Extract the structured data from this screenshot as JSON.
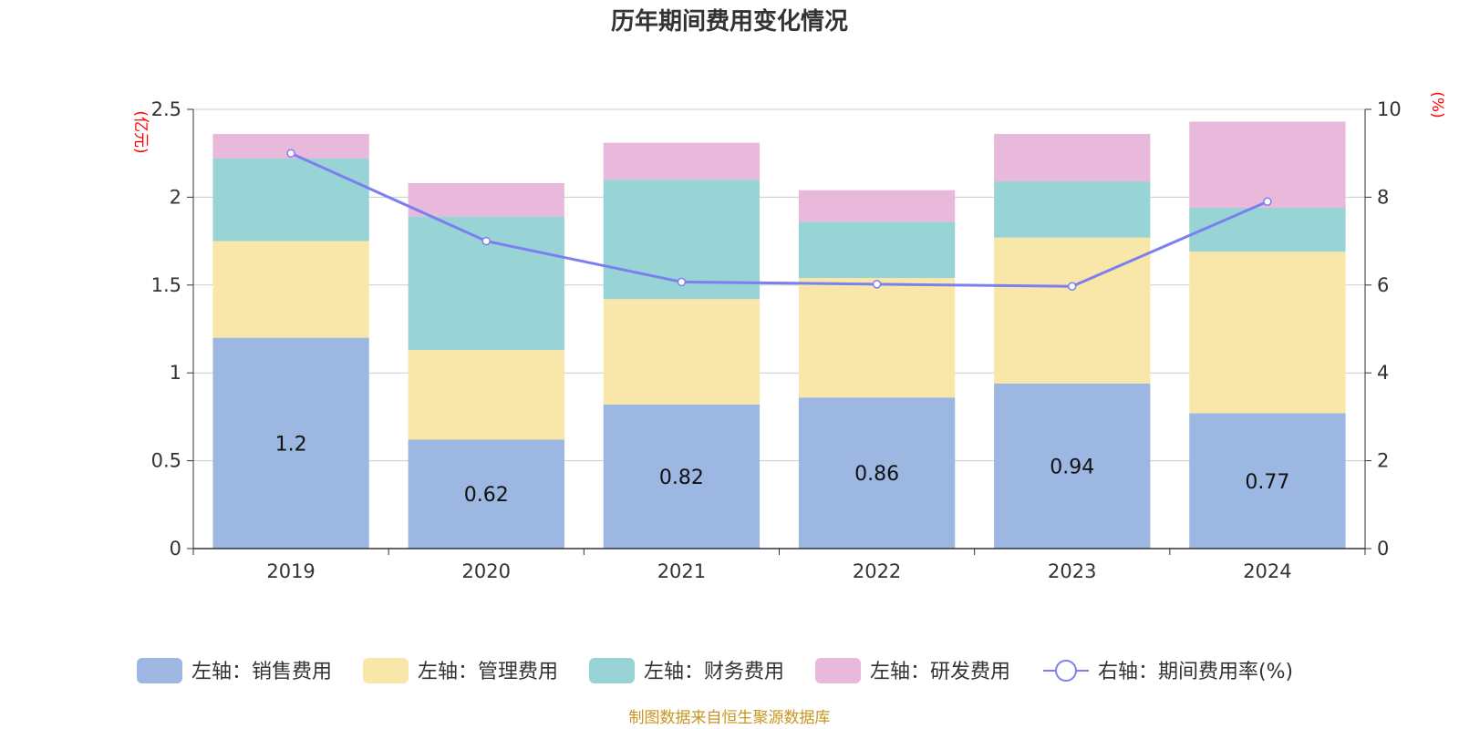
{
  "chart_data": {
    "type": "bar",
    "title": "历年期间费用变化情况",
    "categories": [
      "2019",
      "2020",
      "2021",
      "2022",
      "2023",
      "2024"
    ],
    "y_left_label": "(亿元)",
    "y_right_label": "(%)",
    "y_left_lim": [
      0,
      2.5
    ],
    "y_left_ticks": [
      "0",
      "0.5",
      "1",
      "1.5",
      "2",
      "2.5"
    ],
    "y_right_lim": [
      0,
      10
    ],
    "y_right_ticks": [
      "0",
      "2",
      "4",
      "6",
      "8",
      "10"
    ],
    "grid": true,
    "legend_position": "bottom",
    "series": [
      {
        "name": "左轴：销售费用",
        "type": "bar",
        "axis": "left",
        "color": "#9bb7e2",
        "values": [
          1.2,
          0.62,
          0.82,
          0.86,
          0.94,
          0.77
        ],
        "labels": [
          "1.2",
          "0.62",
          "0.82",
          "0.86",
          "0.94",
          "0.77"
        ]
      },
      {
        "name": "左轴：管理费用",
        "type": "bar",
        "axis": "left",
        "color": "#f8e7a8",
        "values": [
          0.55,
          0.51,
          0.6,
          0.68,
          0.83,
          0.92
        ]
      },
      {
        "name": "左轴：财务费用",
        "type": "bar",
        "axis": "left",
        "color": "#98d4d5",
        "values": [
          0.47,
          0.76,
          0.68,
          0.32,
          0.32,
          0.25
        ]
      },
      {
        "name": "左轴：研发费用",
        "type": "bar",
        "axis": "left",
        "color": "#e8b9da",
        "values": [
          0.14,
          0.19,
          0.21,
          0.18,
          0.27,
          0.49
        ]
      },
      {
        "name": "右轴：期间费用率(%)",
        "type": "line",
        "axis": "right",
        "color": "#7b7ff0",
        "values": [
          9.0,
          7.0,
          6.07,
          6.02,
          5.97,
          7.9
        ]
      }
    ]
  },
  "source": "制图数据来自恒生聚源数据库"
}
